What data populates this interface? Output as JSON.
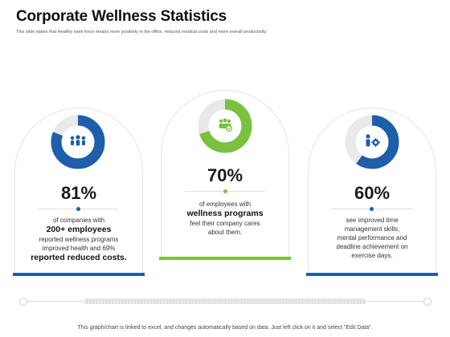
{
  "page": {
    "title": "Corporate Wellness Statistics",
    "subtitle": "This slide states that Healthy work force means more positivity in the office, reduced medical costs and more overall productivity.",
    "footer": "This graph/chart is linked to excel, and changes automatically based on data. Just left click on it and select “Edit Data”."
  },
  "colors": {
    "blue": "#1f5ea9",
    "green": "#7ac13f",
    "track": "#e9e9e9"
  },
  "cards": [
    {
      "percent_label": "81%",
      "icon": "people-group-icon",
      "desc_lines": [
        "of companies with",
        "200+ employees",
        "reported wellness programs",
        "improved health and 69%",
        "reported reduced costs."
      ]
    },
    {
      "percent_label": "70%",
      "icon": "wellness-team-icon",
      "desc_lines": [
        "of employees with",
        "wellness programs",
        "feel their company cares",
        "about them."
      ]
    },
    {
      "percent_label": "60%",
      "icon": "person-gear-icon",
      "desc_lines": [
        "see improved time",
        "management skills,",
        "mental performance and",
        "deadline achievement on",
        "exercise days."
      ]
    }
  ],
  "chart_data": {
    "type": "pie",
    "variant": "donut",
    "categories": [
      "Companies with 200+ employees reporting improved health",
      "Employees feeling company cares",
      "Improved time management on exercise days"
    ],
    "values": [
      81,
      70,
      60
    ],
    "unit": "%",
    "series_colors": [
      "#1f5ea9",
      "#7ac13f",
      "#1f5ea9"
    ]
  }
}
